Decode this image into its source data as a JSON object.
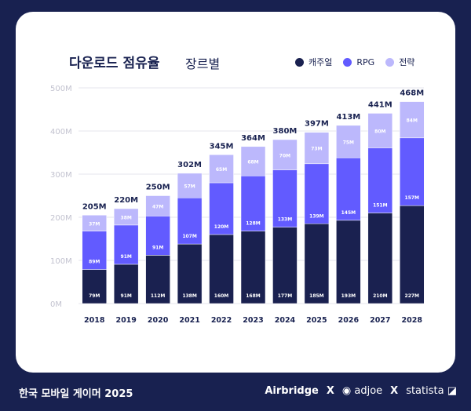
{
  "header": {
    "title": "다운로드 점유율",
    "subtitle": "장르별"
  },
  "footer": {
    "title": "한국 모바일 게이머 2025",
    "logos": [
      "Airbridge",
      "adjoe",
      "statista"
    ],
    "separator": "X"
  },
  "colors": {
    "background": "#182150",
    "casual": "#1a2150",
    "rpg": "#625bff",
    "strategy": "#bcb8fc",
    "grid": "#e6e6ee"
  },
  "chart_data": {
    "type": "bar",
    "stacked": true,
    "categories": [
      "2018",
      "2019",
      "2020",
      "2021",
      "2022",
      "2023",
      "2024",
      "2025",
      "2026",
      "2027",
      "2028"
    ],
    "series": [
      {
        "name": "캐주얼",
        "color": "#1a2150",
        "values": [
          79,
          91,
          112,
          138,
          160,
          168,
          177,
          185,
          193,
          210,
          227
        ]
      },
      {
        "name": "RPG",
        "color": "#625bff",
        "values": [
          89,
          91,
          91,
          107,
          120,
          128,
          133,
          139,
          145,
          151,
          157
        ]
      },
      {
        "name": "전략",
        "color": "#bcb8fc",
        "values": [
          37,
          38,
          47,
          57,
          65,
          68,
          70,
          73,
          75,
          80,
          84
        ]
      }
    ],
    "totals": [
      205,
      220,
      250,
      302,
      345,
      364,
      380,
      397,
      413,
      441,
      468
    ],
    "unit": "M",
    "yticks": [
      "0M",
      "100M",
      "200M",
      "300M",
      "400M",
      "500M"
    ],
    "ylim": [
      0,
      500
    ],
    "grid": true,
    "legend": "top-right"
  }
}
